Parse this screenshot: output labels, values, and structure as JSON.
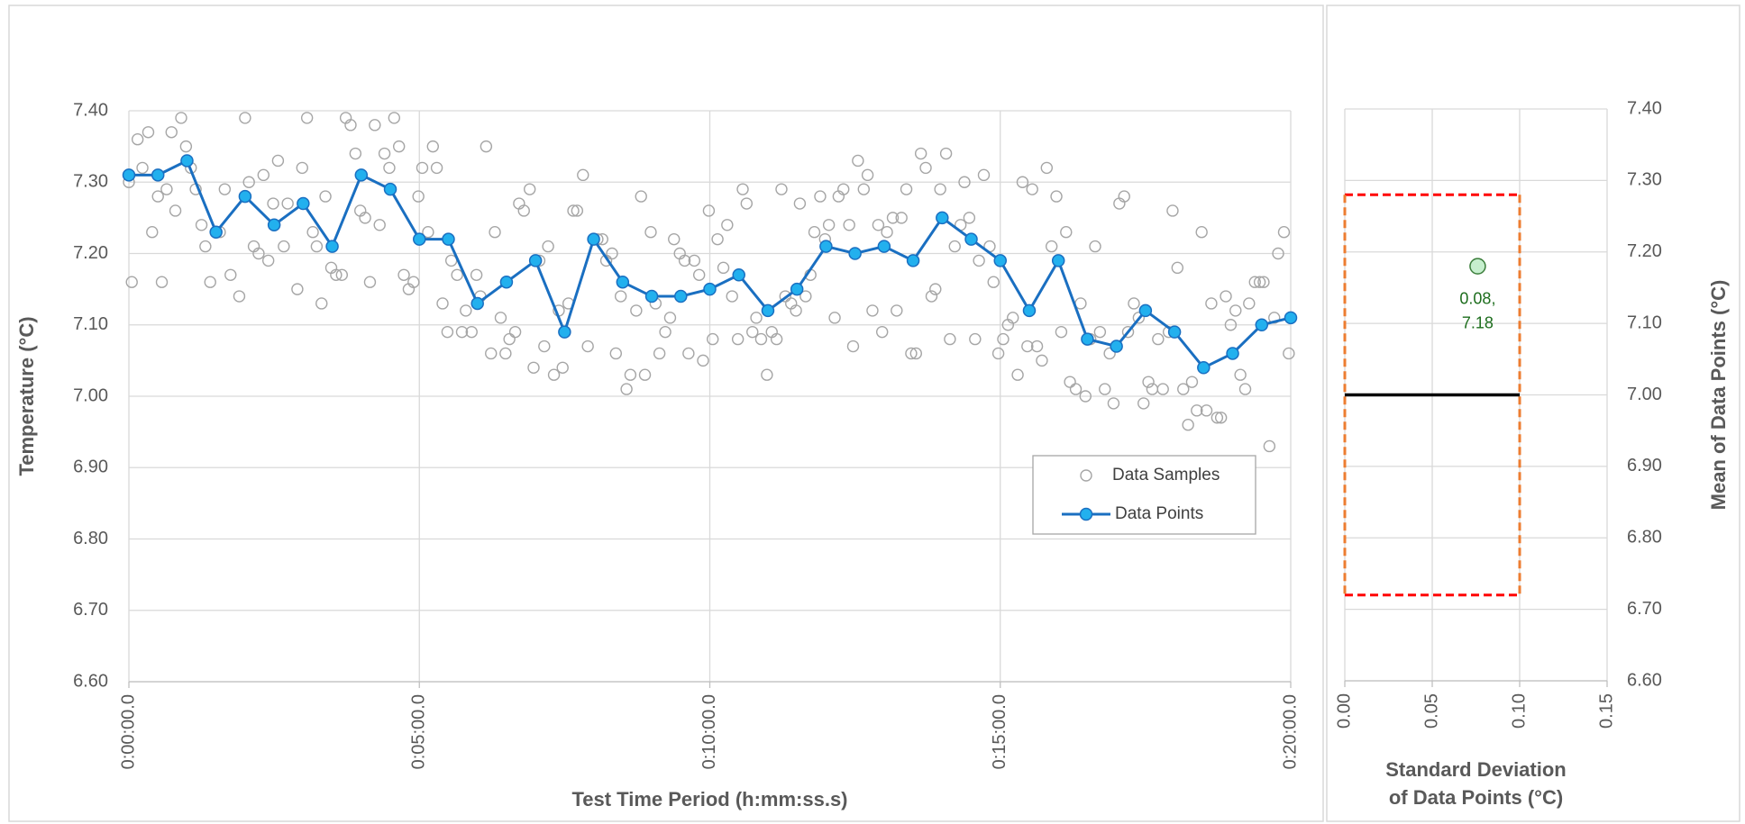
{
  "chart_data": [
    {
      "type": "scatter",
      "xlabel": "Test Time Period (h:mm:ss.s)",
      "ylabel": "Temperature (°C)",
      "xlim": [
        0,
        1200
      ],
      "xticks": [
        {
          "value": 0,
          "label": "0:00:00.0"
        },
        {
          "value": 300,
          "label": "0:05:00.0"
        },
        {
          "value": 600,
          "label": "0:10:00.0"
        },
        {
          "value": 900,
          "label": "0:15:00.0"
        },
        {
          "value": 1200,
          "label": "0:20:00.0"
        }
      ],
      "ylim": [
        6.6,
        7.4
      ],
      "yticks": [
        {
          "value": 6.6,
          "label": "6.60"
        },
        {
          "value": 6.7,
          "label": "6.70"
        },
        {
          "value": 6.8,
          "label": "6.80"
        },
        {
          "value": 6.9,
          "label": "6.90"
        },
        {
          "value": 7.0,
          "label": "7.00"
        },
        {
          "value": 7.1,
          "label": "7.10"
        },
        {
          "value": 7.2,
          "label": "7.20"
        },
        {
          "value": 7.3,
          "label": "7.30"
        },
        {
          "value": 7.4,
          "label": "7.40"
        }
      ],
      "grid": true,
      "y_axis_side": "left",
      "legend": "center-right",
      "series": [
        {
          "name": "Data Samples",
          "marker": "hollow-circle",
          "color": "#a6a6a6",
          "x": [
            0,
            3,
            9,
            14,
            20,
            24,
            30,
            34,
            39,
            44,
            48,
            54,
            59,
            64,
            69,
            75,
            79,
            84,
            90,
            94,
            99,
            105,
            114,
            120,
            124,
            129,
            134,
            139,
            144,
            149,
            154,
            160,
            164,
            174,
            179,
            184,
            190,
            194,
            199,
            203,
            209,
            214,
            220,
            224,
            229,
            234,
            239,
            244,
            249,
            254,
            259,
            264,
            269,
            274,
            279,
            284,
            289,
            294,
            299,
            303,
            309,
            314,
            318,
            324,
            329,
            333,
            339,
            344,
            348,
            354,
            359,
            363,
            369,
            374,
            378,
            384,
            389,
            393,
            399,
            403,
            408,
            414,
            418,
            424,
            429,
            433,
            439,
            444,
            448,
            454,
            459,
            463,
            469,
            474,
            484,
            489,
            493,
            499,
            503,
            508,
            514,
            518,
            524,
            529,
            533,
            539,
            544,
            548,
            554,
            559,
            563,
            569,
            574,
            578,
            584,
            589,
            593,
            599,
            603,
            608,
            614,
            618,
            623,
            629,
            634,
            638,
            644,
            648,
            653,
            659,
            664,
            669,
            674,
            678,
            684,
            689,
            693,
            699,
            704,
            708,
            714,
            719,
            723,
            729,
            733,
            738,
            744,
            748,
            753,
            759,
            763,
            768,
            774,
            778,
            783,
            789,
            793,
            798,
            803,
            808,
            813,
            818,
            823,
            829,
            833,
            838,
            844,
            848,
            853,
            859,
            863,
            868,
            874,
            878,
            883,
            889,
            893,
            898,
            903,
            908,
            913,
            918,
            923,
            928,
            933,
            938,
            943,
            948,
            953,
            958,
            963,
            968,
            972,
            978,
            983,
            988,
            993,
            998,
            1003,
            1008,
            1013,
            1017,
            1023,
            1028,
            1032,
            1038,
            1043,
            1048,
            1053,
            1057,
            1063,
            1068,
            1074,
            1078,
            1083,
            1089,
            1094,
            1098,
            1103,
            1108,
            1113,
            1118,
            1124,
            1128,
            1133,
            1138,
            1143,
            1148,
            1153,
            1157,
            1163,
            1168,
            1172,
            1178,
            1183,
            1187,
            1193,
            1198
          ],
          "values": [
            7.3,
            7.16,
            7.36,
            7.32,
            7.37,
            7.23,
            7.28,
            7.16,
            7.29,
            7.37,
            7.26,
            7.39,
            7.35,
            7.32,
            7.29,
            7.24,
            7.21,
            7.16,
            7.23,
            7.23,
            7.29,
            7.17,
            7.14,
            7.39,
            7.3,
            7.21,
            7.2,
            7.31,
            7.19,
            7.27,
            7.33,
            7.21,
            7.27,
            7.15,
            7.32,
            7.39,
            7.23,
            7.21,
            7.13,
            7.28,
            7.18,
            7.17,
            7.17,
            7.39,
            7.38,
            7.34,
            7.26,
            7.25,
            7.16,
            7.38,
            7.24,
            7.34,
            7.32,
            7.39,
            7.35,
            7.17,
            7.15,
            7.16,
            7.28,
            7.32,
            7.23,
            7.35,
            7.32,
            7.13,
            7.09,
            7.19,
            7.17,
            7.09,
            7.12,
            7.09,
            7.17,
            7.14,
            7.35,
            7.06,
            7.23,
            7.11,
            7.06,
            7.08,
            7.09,
            7.27,
            7.26,
            7.29,
            7.04,
            7.19,
            7.07,
            7.21,
            7.03,
            7.12,
            7.04,
            7.13,
            7.26,
            7.26,
            7.31,
            7.07,
            7.22,
            7.22,
            7.19,
            7.2,
            7.06,
            7.14,
            7.01,
            7.03,
            7.12,
            7.28,
            7.03,
            7.23,
            7.13,
            7.06,
            7.09,
            7.11,
            7.22,
            7.2,
            7.19,
            7.06,
            7.19,
            7.17,
            7.05,
            7.26,
            7.08,
            7.22,
            7.18,
            7.24,
            7.14,
            7.08,
            7.29,
            7.27,
            7.09,
            7.11,
            7.08,
            7.03,
            7.09,
            7.08,
            7.29,
            7.14,
            7.13,
            7.12,
            7.27,
            7.14,
            7.17,
            7.23,
            7.28,
            7.22,
            7.24,
            7.11,
            7.28,
            7.29,
            7.24,
            7.07,
            7.33,
            7.29,
            7.31,
            7.12,
            7.24,
            7.09,
            7.23,
            7.25,
            7.12,
            7.25,
            7.29,
            7.06,
            7.06,
            7.34,
            7.32,
            7.14,
            7.15,
            7.29,
            7.34,
            7.08,
            7.21,
            7.24,
            7.3,
            7.25,
            7.08,
            7.19,
            7.31,
            7.21,
            7.16,
            7.06,
            7.08,
            7.1,
            7.11,
            7.03,
            7.3,
            7.07,
            7.29,
            7.07,
            7.05,
            7.32,
            7.21,
            7.28,
            7.09,
            7.23,
            7.02,
            7.01,
            7.13,
            7.0,
            7.08,
            7.21,
            7.09,
            7.01,
            7.06,
            6.99,
            7.27,
            7.28,
            7.09,
            7.13,
            7.11,
            6.99,
            7.02,
            7.01,
            7.08,
            7.01,
            7.09,
            7.26,
            7.18,
            7.01,
            6.96,
            7.02,
            6.98,
            7.23,
            6.98,
            7.13,
            6.97,
            6.97,
            7.14,
            7.1,
            7.12,
            7.03,
            7.01,
            7.13,
            7.16,
            7.16,
            7.16,
            6.93,
            7.11,
            7.2,
            7.23,
            7.06
          ]
        },
        {
          "name": "Data Points",
          "marker": "filled-circle",
          "line": true,
          "color": "#1a6fc1",
          "marker_color": "#22b0ee",
          "x": [
            0,
            30,
            60,
            90,
            120,
            150,
            180,
            210,
            240,
            270,
            300,
            330,
            360,
            390,
            420,
            450,
            480,
            510,
            540,
            570,
            600,
            630,
            660,
            690,
            720,
            750,
            780,
            810,
            840,
            870,
            900,
            930,
            960,
            990,
            1020,
            1050,
            1080,
            1110,
            1140,
            1170,
            1200
          ],
          "values": [
            7.31,
            7.31,
            7.33,
            7.23,
            7.28,
            7.24,
            7.27,
            7.21,
            7.31,
            7.29,
            7.22,
            7.22,
            7.13,
            7.16,
            7.19,
            7.09,
            7.22,
            7.16,
            7.14,
            7.14,
            7.15,
            7.17,
            7.12,
            7.15,
            7.21,
            7.2,
            7.21,
            7.19,
            7.25,
            7.22,
            7.19,
            7.12,
            7.19,
            7.08,
            7.07,
            7.12,
            7.09,
            7.04,
            7.06,
            7.1,
            7.11
          ]
        }
      ]
    },
    {
      "type": "scatter",
      "xlabel": "Standard Deviation\nof Data Points (°C)",
      "ylabel": "Mean of Data Points (°C)",
      "xlim": [
        0,
        0.15
      ],
      "xticks": [
        {
          "value": 0,
          "label": "0.00"
        },
        0.05,
        {
          "value": 0.1,
          "label": "0.10"
        },
        0.15
      ],
      "ylim": [
        6.6,
        7.4
      ],
      "yticks": [
        {
          "value": 6.6,
          "label": "6.60"
        },
        {
          "value": 6.7,
          "label": "6.70"
        },
        {
          "value": 6.8,
          "label": "6.80"
        },
        {
          "value": 6.9,
          "label": "6.90"
        },
        {
          "value": 7.0,
          "label": "7.00"
        },
        {
          "value": 7.1,
          "label": "7.10"
        },
        {
          "value": 7.2,
          "label": "7.20"
        },
        {
          "value": 7.3,
          "label": "7.30"
        },
        {
          "value": 7.4,
          "label": "7.40"
        }
      ],
      "grid": true,
      "y_axis_side": "right",
      "reference": {
        "x": [
          0,
          0.1
        ],
        "y": [
          6.72,
          7.28
        ],
        "target": 7.0,
        "box_color": "#ff0000",
        "side_color": "#ed7d31",
        "target_color": "#000000"
      },
      "series": [
        {
          "marker": "filled-circle",
          "color": "#c6efce",
          "edge_color": "#3a7d3a",
          "label_color": "#1e6e1e",
          "x": [
            0.076
          ],
          "values": [
            7.18
          ],
          "value_labels": [
            "0.08,\n7.18"
          ]
        }
      ]
    }
  ]
}
